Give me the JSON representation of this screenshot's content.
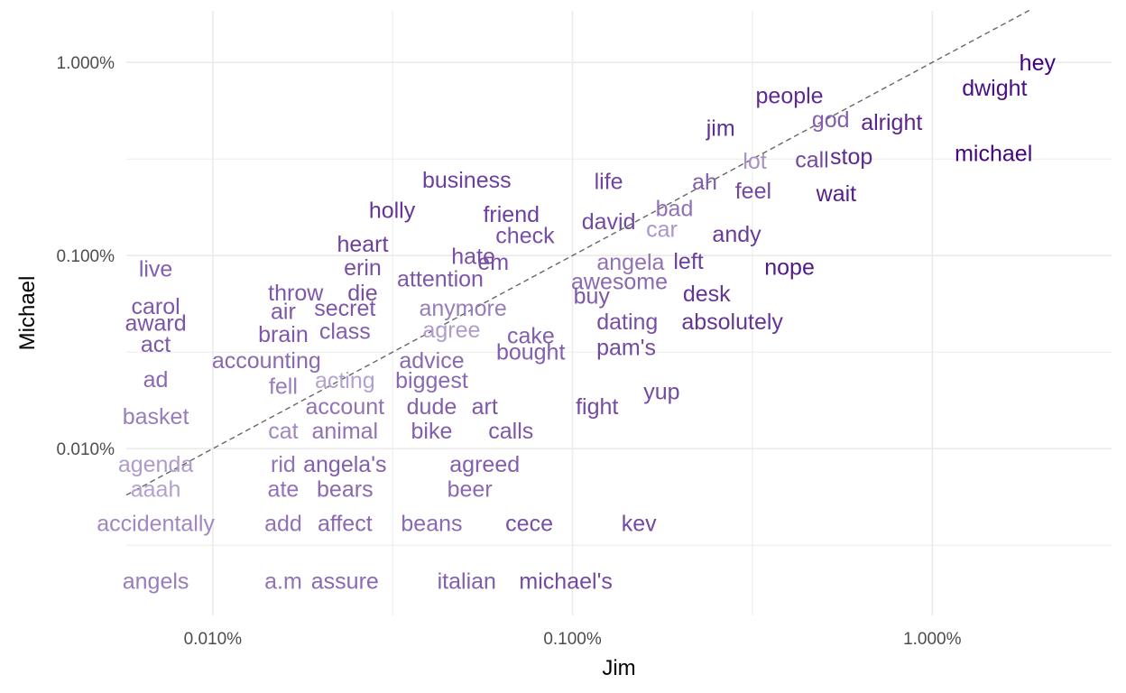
{
  "chart_data": {
    "type": "scatter",
    "title": "",
    "xlabel": "Jim",
    "ylabel": "Michael",
    "x_scale": "log10",
    "y_scale": "log10",
    "x_ticks": [
      {
        "value": 0.0001,
        "label": "0.010%"
      },
      {
        "value": 0.001,
        "label": "0.100%"
      },
      {
        "value": 0.01,
        "label": "1.000%"
      }
    ],
    "y_ticks": [
      {
        "value": 0.0001,
        "label": "0.010%"
      },
      {
        "value": 0.001,
        "label": "0.100%"
      },
      {
        "value": 0.01,
        "label": "1.000%"
      }
    ],
    "xlim": [
      5.75e-05,
      0.0315
    ],
    "ylim": [
      1.37e-05,
      0.0185
    ],
    "reference_line": "y = x",
    "grid": true,
    "legend": "none",
    "color_scale": {
      "low": "#d4d0e6",
      "high": "#3f007d"
    },
    "points": [
      {
        "word": "hey",
        "x": 0.0196,
        "y": 0.01,
        "c": 0.99
      },
      {
        "word": "dwight",
        "x": 0.0149,
        "y": 0.0074,
        "c": 0.93
      },
      {
        "word": "michael",
        "x": 0.0148,
        "y": 0.0034,
        "c": 0.97
      },
      {
        "word": "people",
        "x": 0.00401,
        "y": 0.00675,
        "c": 0.8
      },
      {
        "word": "god",
        "x": 0.00522,
        "y": 0.00508,
        "c": 0.55
      },
      {
        "word": "alright",
        "x": 0.00771,
        "y": 0.00493,
        "c": 0.82
      },
      {
        "word": "jim",
        "x": 0.00258,
        "y": 0.00459,
        "c": 0.78
      },
      {
        "word": "ah",
        "x": 0.00233,
        "y": 0.00242,
        "c": 0.55
      },
      {
        "word": "lot",
        "x": 0.00321,
        "y": 0.0031,
        "c": 0.3
      },
      {
        "word": "call",
        "x": 0.00463,
        "y": 0.00316,
        "c": 0.65
      },
      {
        "word": "stop",
        "x": 0.00596,
        "y": 0.00327,
        "c": 0.8
      },
      {
        "word": "feel",
        "x": 0.00318,
        "y": 0.00217,
        "c": 0.65
      },
      {
        "word": "wait",
        "x": 0.00541,
        "y": 0.0021,
        "c": 0.85
      },
      {
        "word": "business",
        "x": 0.000508,
        "y": 0.00247,
        "c": 0.7
      },
      {
        "word": "life",
        "x": 0.00126,
        "y": 0.00243,
        "c": 0.68
      },
      {
        "word": "bad",
        "x": 0.00192,
        "y": 0.00176,
        "c": 0.45
      },
      {
        "word": "car",
        "x": 0.00177,
        "y": 0.00138,
        "c": 0.28
      },
      {
        "word": "holly",
        "x": 0.000315,
        "y": 0.00173,
        "c": 0.75
      },
      {
        "word": "friend",
        "x": 0.000676,
        "y": 0.00164,
        "c": 0.7
      },
      {
        "word": "david",
        "x": 0.00126,
        "y": 0.00151,
        "c": 0.65
      },
      {
        "word": "andy",
        "x": 0.00286,
        "y": 0.0013,
        "c": 0.72
      },
      {
        "word": "check",
        "x": 0.000738,
        "y": 0.00128,
        "c": 0.62
      },
      {
        "word": "heart",
        "x": 0.000261,
        "y": 0.00115,
        "c": 0.7
      },
      {
        "word": "hate",
        "x": 0.00053,
        "y": 0.000995,
        "c": 0.62
      },
      {
        "word": "em",
        "x": 0.000602,
        "y": 0.000928,
        "c": 0.62
      },
      {
        "word": "angela",
        "x": 0.00145,
        "y": 0.000928,
        "c": 0.45
      },
      {
        "word": "left",
        "x": 0.0021,
        "y": 0.00094,
        "c": 0.7
      },
      {
        "word": "nope",
        "x": 0.00401,
        "y": 0.000875,
        "c": 0.88
      },
      {
        "word": "live",
        "x": 6.94e-05,
        "y": 0.000858,
        "c": 0.55
      },
      {
        "word": "erin",
        "x": 0.000261,
        "y": 0.00087,
        "c": 0.62
      },
      {
        "word": "attention",
        "x": 0.000429,
        "y": 0.000763,
        "c": 0.58
      },
      {
        "word": "awesome",
        "x": 0.00135,
        "y": 0.000738,
        "c": 0.5
      },
      {
        "word": "throw",
        "x": 0.00017,
        "y": 0.000646,
        "c": 0.58
      },
      {
        "word": "die",
        "x": 0.000261,
        "y": 0.000646,
        "c": 0.62
      },
      {
        "word": "desk",
        "x": 0.00236,
        "y": 0.000637,
        "c": 0.75
      },
      {
        "word": "buy",
        "x": 0.00113,
        "y": 0.000621,
        "c": 0.58
      },
      {
        "word": "carol",
        "x": 6.94e-05,
        "y": 0.00055,
        "c": 0.58
      },
      {
        "word": "secret",
        "x": 0.000233,
        "y": 0.000536,
        "c": 0.58
      },
      {
        "word": "anymore",
        "x": 0.000496,
        "y": 0.000536,
        "c": 0.4
      },
      {
        "word": "air",
        "x": 0.000157,
        "y": 0.000516,
        "c": 0.58
      },
      {
        "word": "dating",
        "x": 0.00142,
        "y": 0.000456,
        "c": 0.62
      },
      {
        "word": "absolutely",
        "x": 0.00278,
        "y": 0.000456,
        "c": 0.75
      },
      {
        "word": "award",
        "x": 6.94e-05,
        "y": 0.00045,
        "c": 0.6
      },
      {
        "word": "agree",
        "x": 0.000461,
        "y": 0.000414,
        "c": 0.25
      },
      {
        "word": "class",
        "x": 0.000233,
        "y": 0.000408,
        "c": 0.55
      },
      {
        "word": "brain",
        "x": 0.000157,
        "y": 0.000394,
        "c": 0.58
      },
      {
        "word": "cake",
        "x": 0.000766,
        "y": 0.000387,
        "c": 0.55
      },
      {
        "word": "act",
        "x": 6.94e-05,
        "y": 0.00035,
        "c": 0.58
      },
      {
        "word": "pam's",
        "x": 0.00141,
        "y": 0.000336,
        "c": 0.65
      },
      {
        "word": "bought",
        "x": 0.000765,
        "y": 0.000318,
        "c": 0.55
      },
      {
        "word": "accounting",
        "x": 0.000141,
        "y": 0.000288,
        "c": 0.5
      },
      {
        "word": "advice",
        "x": 0.000406,
        "y": 0.000288,
        "c": 0.5
      },
      {
        "word": "ad",
        "x": 6.94e-05,
        "y": 0.00023,
        "c": 0.5
      },
      {
        "word": "acting",
        "x": 0.000233,
        "y": 0.000227,
        "c": 0.22
      },
      {
        "word": "biggest",
        "x": 0.000406,
        "y": 0.000227,
        "c": 0.5
      },
      {
        "word": "fell",
        "x": 0.000157,
        "y": 0.000212,
        "c": 0.4
      },
      {
        "word": "yup",
        "x": 0.00177,
        "y": 0.000198,
        "c": 0.65
      },
      {
        "word": "account",
        "x": 0.000233,
        "y": 0.000166,
        "c": 0.45
      },
      {
        "word": "dude",
        "x": 0.000406,
        "y": 0.000166,
        "c": 0.55
      },
      {
        "word": "art",
        "x": 0.00057,
        "y": 0.000166,
        "c": 0.58
      },
      {
        "word": "fight",
        "x": 0.00117,
        "y": 0.000166,
        "c": 0.65
      },
      {
        "word": "basket",
        "x": 6.94e-05,
        "y": 0.000148,
        "c": 0.4
      },
      {
        "word": "cat",
        "x": 0.000157,
        "y": 0.000124,
        "c": 0.35
      },
      {
        "word": "animal",
        "x": 0.000233,
        "y": 0.000124,
        "c": 0.45
      },
      {
        "word": "bike",
        "x": 0.000406,
        "y": 0.000124,
        "c": 0.55
      },
      {
        "word": "calls",
        "x": 0.000674,
        "y": 0.000124,
        "c": 0.58
      },
      {
        "word": "agenda",
        "x": 6.94e-05,
        "y": 8.35e-05,
        "c": 0.25
      },
      {
        "word": "rid",
        "x": 0.000157,
        "y": 8.35e-05,
        "c": 0.45
      },
      {
        "word": "angela's",
        "x": 0.000233,
        "y": 8.35e-05,
        "c": 0.55
      },
      {
        "word": "agreed",
        "x": 0.00057,
        "y": 8.35e-05,
        "c": 0.55
      },
      {
        "word": "aaah",
        "x": 6.94e-05,
        "y": 6.2e-05,
        "c": 0.22
      },
      {
        "word": "ate",
        "x": 0.000157,
        "y": 6.2e-05,
        "c": 0.45
      },
      {
        "word": "bears",
        "x": 0.000233,
        "y": 6.2e-05,
        "c": 0.5
      },
      {
        "word": "beer",
        "x": 0.000518,
        "y": 6.2e-05,
        "c": 0.5
      },
      {
        "word": "accidentally",
        "x": 6.94e-05,
        "y": 4.13e-05,
        "c": 0.35
      },
      {
        "word": "add",
        "x": 0.000157,
        "y": 4.13e-05,
        "c": 0.45
      },
      {
        "word": "affect",
        "x": 0.000233,
        "y": 4.13e-05,
        "c": 0.5
      },
      {
        "word": "beans",
        "x": 0.000406,
        "y": 4.13e-05,
        "c": 0.5
      },
      {
        "word": "cece",
        "x": 0.000758,
        "y": 4.13e-05,
        "c": 0.62
      },
      {
        "word": "kev",
        "x": 0.00153,
        "y": 4.13e-05,
        "c": 0.65
      },
      {
        "word": "angels",
        "x": 6.94e-05,
        "y": 2.07e-05,
        "c": 0.4
      },
      {
        "word": "a.m",
        "x": 0.000157,
        "y": 2.07e-05,
        "c": 0.45
      },
      {
        "word": "assure",
        "x": 0.000233,
        "y": 2.07e-05,
        "c": 0.5
      },
      {
        "word": "italian",
        "x": 0.000508,
        "y": 2.07e-05,
        "c": 0.55
      },
      {
        "word": "michael's",
        "x": 0.000958,
        "y": 2.07e-05,
        "c": 0.65
      }
    ]
  }
}
